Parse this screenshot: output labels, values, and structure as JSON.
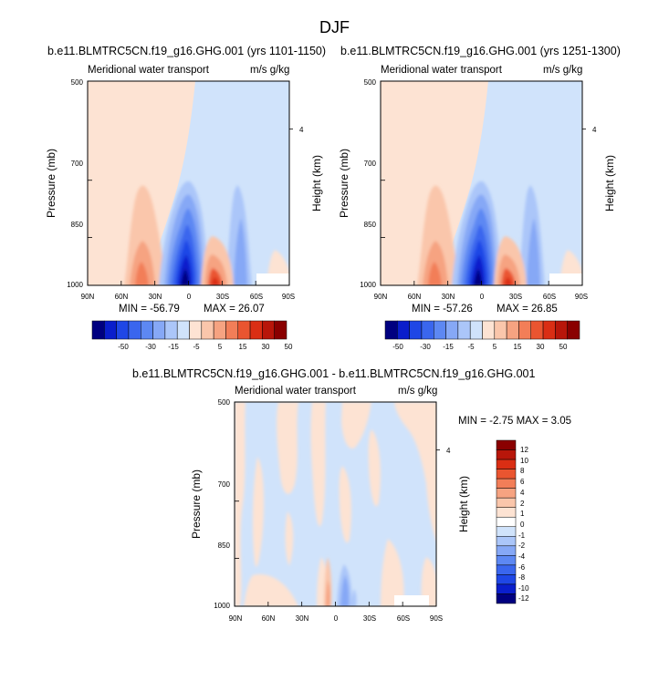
{
  "figure": {
    "title": "DJF"
  },
  "chart_data": [
    {
      "type": "heatmap",
      "title": "b.e11.BLMTRC5CN.f19_g16.GHG.001 (yrs 1101-1150)",
      "left_string": "Meridional water transport",
      "right_string": "m/s g/kg",
      "ylabel": "Pressure (mb)",
      "ylabel_right": "Height (km)",
      "x_ticks": [
        "90N",
        "60N",
        "30N",
        "0",
        "30S",
        "60S",
        "90S"
      ],
      "y_ticks": [
        "500",
        "700",
        "850",
        "1000"
      ],
      "y_right_ticks": [
        "4"
      ],
      "ylim": [
        1000,
        500
      ],
      "min_label": "MIN = -56.79",
      "max_label": "MAX = 26.07",
      "stats": {
        "min": -56.79,
        "max": 26.07
      },
      "colorbar_labels": [
        "-50",
        "-30",
        "-15",
        "-5",
        "5",
        "15",
        "30",
        "50"
      ]
    },
    {
      "type": "heatmap",
      "title": "b.e11.BLMTRC5CN.f19_g16.GHG.001 (yrs 1251-1300)",
      "left_string": "Meridional water transport",
      "right_string": "m/s g/kg",
      "ylabel": "Pressure (mb)",
      "ylabel_right": "Height (km)",
      "x_ticks": [
        "90N",
        "60N",
        "30N",
        "0",
        "30S",
        "60S",
        "90S"
      ],
      "y_ticks": [
        "500",
        "700",
        "850",
        "1000"
      ],
      "y_right_ticks": [
        "4"
      ],
      "ylim": [
        1000,
        500
      ],
      "min_label": "MIN = -57.26",
      "max_label": "MAX = 26.85",
      "stats": {
        "min": -57.26,
        "max": 26.85
      },
      "colorbar_labels": [
        "-50",
        "-30",
        "-15",
        "-5",
        "5",
        "15",
        "30",
        "50"
      ]
    },
    {
      "type": "heatmap",
      "title": "b.e11.BLMTRC5CN.f19_g16.GHG.001 - b.e11.BLMTRC5CN.f19_g16.GHG.001",
      "left_string": "Meridional water transport",
      "right_string": "m/s g/kg",
      "ylabel": "Pressure (mb)",
      "ylabel_right": "Height (km)",
      "x_ticks": [
        "90N",
        "60N",
        "30N",
        "0",
        "30S",
        "60S",
        "90S"
      ],
      "y_ticks": [
        "500",
        "700",
        "850",
        "1000"
      ],
      "y_right_ticks": [
        "4"
      ],
      "ylim": [
        1000,
        500
      ],
      "minmax_label": "MIN = -2.75   MAX =  3.05",
      "stats": {
        "min": -2.75,
        "max": 3.05
      },
      "colorbar_labels": [
        "12",
        "10",
        "8",
        "6",
        "4",
        "2",
        "1",
        "0",
        "-1",
        "-2",
        "-4",
        "-6",
        "-8",
        "-10",
        "-12"
      ]
    }
  ],
  "colors": {
    "abs_scale": [
      "#000080",
      "#0a1ecc",
      "#1f47e6",
      "#3a66ee",
      "#5d88f3",
      "#86a8f6",
      "#abc6f9",
      "#d0e3fb",
      "#fde3d3",
      "#fac6ab",
      "#f6a381",
      "#f27e58",
      "#ea5530",
      "#da2e14",
      "#b8160a",
      "#8a0000"
    ],
    "diff_scale": [
      "#8a0000",
      "#b8160a",
      "#da2e14",
      "#ea5530",
      "#f27e58",
      "#f6a381",
      "#fac6ab",
      "#fde3d3",
      "#ffffff",
      "#d0e3fb",
      "#abc6f9",
      "#86a8f6",
      "#5d88f3",
      "#3a66ee",
      "#1f47e6",
      "#0a1ecc",
      "#000080"
    ]
  }
}
